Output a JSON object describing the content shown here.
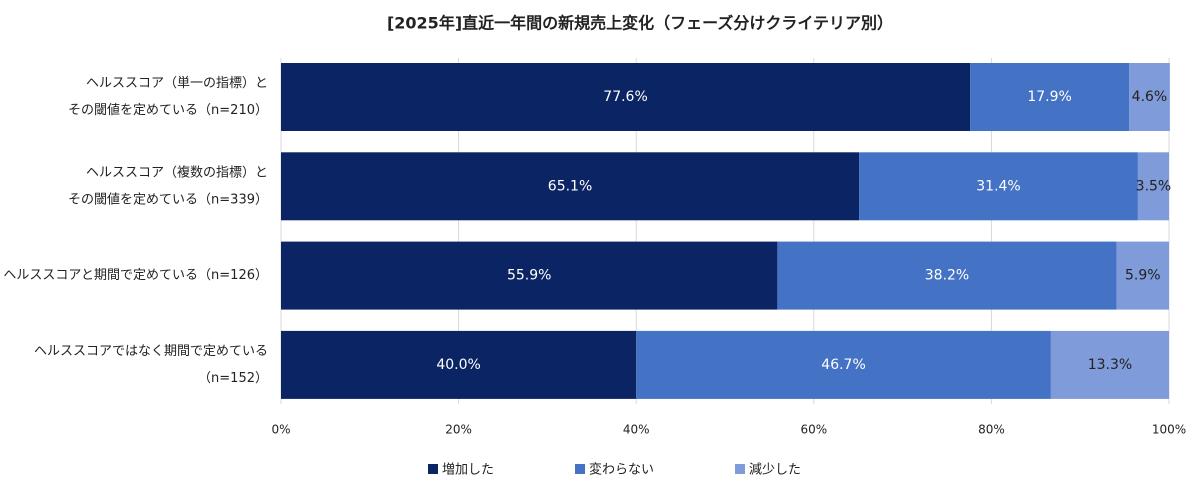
{
  "chart_data": {
    "type": "stacked_bar_horizontal",
    "title": "[2025年]直近一年間の新規売上変化（フェーズ分けクライテリア別）",
    "categories": [
      [
        "ヘルススコア（単一の指標）と",
        "その閾値を定めている（n=210）"
      ],
      [
        "ヘルススコア（複数の指標）と",
        "その閾値を定めている（n=339）"
      ],
      [
        "ヘルススコアと期間で定めている（n=126）"
      ],
      [
        "ヘルススコアではなく期間で定めている",
        "（n=152）"
      ]
    ],
    "series": [
      {
        "name": "増加した",
        "color": "#0b2463",
        "values": [
          77.6,
          65.1,
          55.9,
          40.0
        ],
        "value_labels": [
          "77.6%",
          "65.1%",
          "55.9%",
          "40.0%"
        ]
      },
      {
        "name": "変わらない",
        "color": "#4472c4",
        "values": [
          17.9,
          31.4,
          38.2,
          46.7
        ],
        "value_labels": [
          "17.9%",
          "31.4%",
          "38.2%",
          "46.7%"
        ]
      },
      {
        "name": "減少した",
        "color": "#7f9bd9",
        "values": [
          4.6,
          3.5,
          5.9,
          13.3
        ],
        "value_labels": [
          "4.6%",
          "3.5%",
          "5.9%",
          "13.3%"
        ]
      }
    ],
    "xlim": [
      0,
      100
    ],
    "xticks": [
      {
        "value": 0,
        "label": "0%"
      },
      {
        "value": 20,
        "label": "20%"
      },
      {
        "value": 40,
        "label": "40%"
      },
      {
        "value": 60,
        "label": "60%"
      },
      {
        "value": 80,
        "label": "80%"
      },
      {
        "value": 100,
        "label": "100%"
      }
    ],
    "grid": true,
    "legend": "bottom"
  }
}
